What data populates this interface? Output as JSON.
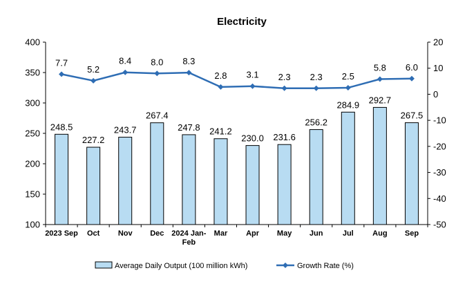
{
  "chart_data": {
    "type": "bar+line",
    "title": "Electricity",
    "categories": [
      "2023 Sep",
      "Oct",
      "Nov",
      "Dec",
      "2024 Jan-Feb",
      "Mar",
      "Apr",
      "May",
      "Jun",
      "Jul",
      "Aug",
      "Sep"
    ],
    "series": [
      {
        "name": "Average Daily Output (100 million kWh)",
        "type": "bar",
        "axis": "left",
        "values": [
          248.5,
          227.2,
          243.7,
          267.4,
          247.8,
          241.2,
          230.0,
          231.6,
          256.2,
          284.9,
          292.7,
          267.5
        ],
        "labels": [
          "248.5",
          "227.2",
          "243.7",
          "267.4",
          "247.8",
          "241.2",
          "230.0",
          "231.6",
          "256.2",
          "284.9",
          "292.7",
          "267.5"
        ],
        "color": "#b8dcf2",
        "stroke": "#000000"
      },
      {
        "name": "Growth Rate (%)",
        "type": "line",
        "axis": "right",
        "values": [
          7.7,
          5.2,
          8.4,
          8.0,
          8.3,
          2.8,
          3.1,
          2.3,
          2.3,
          2.5,
          5.8,
          6.0
        ],
        "labels": [
          "7.7",
          "5.2",
          "8.4",
          "8.0",
          "8.3",
          "2.8",
          "3.1",
          "2.3",
          "2.3",
          "2.5",
          "5.8",
          "6.0"
        ],
        "color": "#2e6db4"
      }
    ],
    "y_left": {
      "min": 100,
      "max": 400,
      "ticks": [
        100,
        150,
        200,
        250,
        300,
        350,
        400
      ]
    },
    "y_right": {
      "min": -50,
      "max": 20,
      "ticks": [
        -50,
        -40,
        -30,
        -20,
        -10,
        0,
        10,
        20
      ]
    },
    "grid": false,
    "legend": "bottom"
  }
}
